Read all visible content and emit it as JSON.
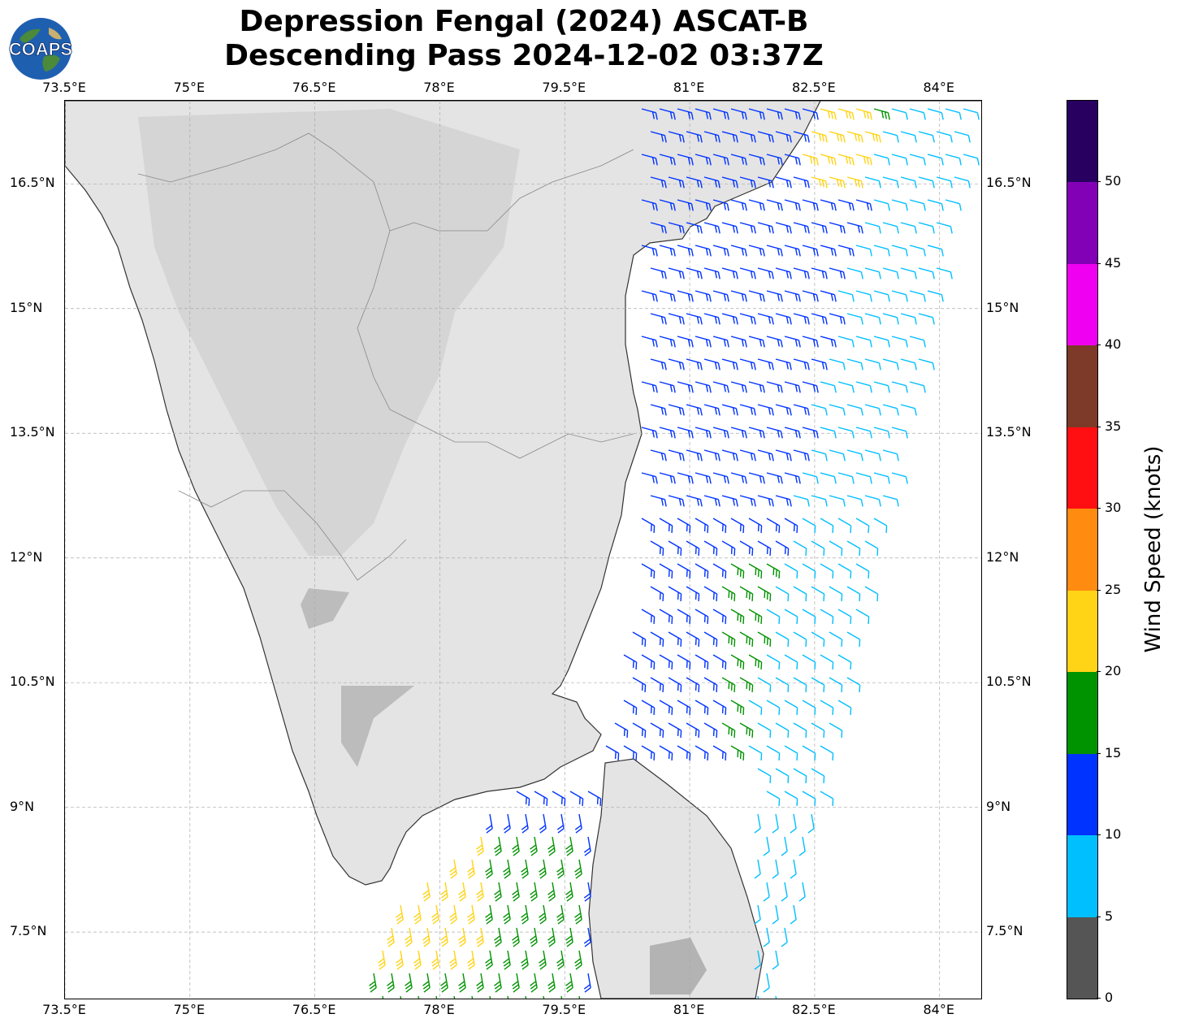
{
  "title": {
    "line1": "Depression Fengal (2024) ASCAT-B",
    "line2": "Descending Pass 2024-12-02 03:37Z"
  },
  "logo": {
    "text": "COAPS",
    "icon": "globe-logo-icon"
  },
  "map": {
    "lon_ticks": [
      "73.5°E",
      "75°E",
      "76.5°E",
      "78°E",
      "79.5°E",
      "81°E",
      "82.5°E",
      "84°E"
    ],
    "lat_ticks": [
      "16.5°N",
      "15°N",
      "13.5°N",
      "12°N",
      "10.5°N",
      "9°N",
      "7.5°N"
    ],
    "lon_values": [
      73.5,
      75,
      76.5,
      78,
      79.5,
      81,
      82.5,
      84
    ],
    "lat_values": [
      16.5,
      15,
      13.5,
      12,
      10.5,
      9,
      7.5
    ],
    "lon_range": [
      73.5,
      84.5
    ],
    "lat_range": [
      6.7,
      17.5
    ],
    "gridlines": true,
    "land_color": "#e6e6e6",
    "coast_color": "#333333",
    "grid_color": "#aaaaaa"
  },
  "colorbar": {
    "label": "Wind Speed (knots)",
    "tick_labels": [
      "0",
      "5",
      "10",
      "15",
      "20",
      "25",
      "30",
      "35",
      "40",
      "45",
      "50"
    ],
    "tick_values": [
      0,
      5,
      10,
      15,
      20,
      25,
      30,
      35,
      40,
      45,
      50
    ],
    "range": [
      0,
      55
    ],
    "bins": [
      {
        "from": 0,
        "to": 5,
        "color": "#555555"
      },
      {
        "from": 5,
        "to": 10,
        "color": "#00bfff"
      },
      {
        "from": 10,
        "to": 15,
        "color": "#0033ff"
      },
      {
        "from": 15,
        "to": 20,
        "color": "#009300"
      },
      {
        "from": 20,
        "to": 25,
        "color": "#ffd316"
      },
      {
        "from": 25,
        "to": 30,
        "color": "#ff8c10"
      },
      {
        "from": 30,
        "to": 35,
        "color": "#ff0e12"
      },
      {
        "from": 35,
        "to": 40,
        "color": "#7d3a28"
      },
      {
        "from": 40,
        "to": 45,
        "color": "#f000f0"
      },
      {
        "from": 45,
        "to": 50,
        "color": "#8200b6"
      },
      {
        "from": 50,
        "to": 55,
        "color": "#270060"
      }
    ]
  }
}
